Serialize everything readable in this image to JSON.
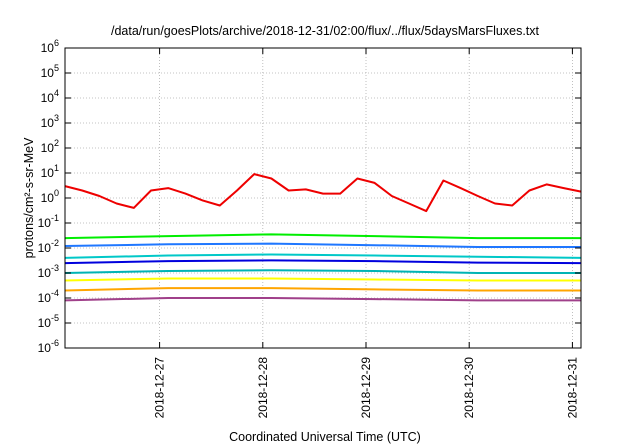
{
  "chart_data": {
    "type": "line",
    "title": "/data/run/goesPlots/archive/2018-12-31/02:00/flux/../flux/5daysMarsFluxes.txt",
    "xlabel": "Coordinated Universal Time (UTC)",
    "ylabel": "protons/cm²-s-sr-MeV",
    "y_scale": "log",
    "ylim": [
      1e-06,
      1000000.0
    ],
    "y_ticks": [
      {
        "exp": "-6",
        "value": 1e-06
      },
      {
        "exp": "-5",
        "value": 1e-05
      },
      {
        "exp": "-4",
        "value": 0.0001
      },
      {
        "exp": "-3",
        "value": 0.001
      },
      {
        "exp": "-2",
        "value": 0.01
      },
      {
        "exp": "-1",
        "value": 0.1
      },
      {
        "exp": "0",
        "value": 1
      },
      {
        "exp": "1",
        "value": 10
      },
      {
        "exp": "2",
        "value": 100
      },
      {
        "exp": "3",
        "value": 1000
      },
      {
        "exp": "4",
        "value": 10000
      },
      {
        "exp": "5",
        "value": 100000
      },
      {
        "exp": "6",
        "value": 1000000
      }
    ],
    "xlim": [
      "2018-12-26T02:00",
      "2018-12-31T02:00"
    ],
    "x_ticks": [
      "2018-12-27",
      "2018-12-28",
      "2018-12-29",
      "2018-12-30",
      "2018-12-31"
    ],
    "grid": true,
    "colors": [
      "#ee0000",
      "#00ee00",
      "#1f77ff",
      "#00c8c8",
      "#0000dd",
      "#00b4b4",
      "#ffff00",
      "#ffa500",
      "#a0408a"
    ],
    "series": [
      {
        "color": "#ee0000",
        "x": [
          "2018-12-26T02:00",
          "2018-12-26T06:00",
          "2018-12-26T10:00",
          "2018-12-26T14:00",
          "2018-12-26T18:00",
          "2018-12-26T22:00",
          "2018-12-27T02:00",
          "2018-12-27T06:00",
          "2018-12-27T10:00",
          "2018-12-27T14:00",
          "2018-12-27T18:00",
          "2018-12-27T22:00",
          "2018-12-28T02:00",
          "2018-12-28T06:00",
          "2018-12-28T10:00",
          "2018-12-28T14:00",
          "2018-12-28T18:00",
          "2018-12-28T22:00",
          "2018-12-29T02:00",
          "2018-12-29T06:00",
          "2018-12-29T10:00",
          "2018-12-29T14:00",
          "2018-12-29T18:00",
          "2018-12-29T22:00",
          "2018-12-30T02:00",
          "2018-12-30T06:00",
          "2018-12-30T10:00",
          "2018-12-30T14:00",
          "2018-12-30T18:00",
          "2018-12-30T22:00",
          "2018-12-31T02:00"
        ],
        "values": [
          3,
          2,
          1.2,
          0.6,
          0.4,
          2,
          2.5,
          1.5,
          0.8,
          0.5,
          2,
          9,
          6,
          2,
          2.2,
          1.5,
          1.5,
          6,
          4,
          1.2,
          0.6,
          0.3,
          5,
          2.5,
          1.2,
          0.6,
          0.5,
          2,
          3.5,
          2.5,
          1.8
        ]
      },
      {
        "color": "#00ee00",
        "x": [
          "2018-12-26T02:00",
          "2018-12-27T02:00",
          "2018-12-28T02:00",
          "2018-12-29T02:00",
          "2018-12-30T02:00",
          "2018-12-31T02:00"
        ],
        "values": [
          0.025,
          0.03,
          0.035,
          0.03,
          0.025,
          0.025
        ]
      },
      {
        "color": "#1f77ff",
        "x": [
          "2018-12-26T02:00",
          "2018-12-27T02:00",
          "2018-12-28T02:00",
          "2018-12-29T02:00",
          "2018-12-30T02:00",
          "2018-12-31T02:00"
        ],
        "values": [
          0.012,
          0.014,
          0.015,
          0.013,
          0.011,
          0.011
        ]
      },
      {
        "color": "#00c8c8",
        "x": [
          "2018-12-26T02:00",
          "2018-12-27T02:00",
          "2018-12-28T02:00",
          "2018-12-29T02:00",
          "2018-12-30T02:00",
          "2018-12-31T02:00"
        ],
        "values": [
          0.004,
          0.005,
          0.0055,
          0.005,
          0.0045,
          0.004
        ]
      },
      {
        "color": "#0000dd",
        "x": [
          "2018-12-26T02:00",
          "2018-12-27T02:00",
          "2018-12-28T02:00",
          "2018-12-29T02:00",
          "2018-12-30T02:00",
          "2018-12-31T02:00"
        ],
        "values": [
          0.0025,
          0.003,
          0.0032,
          0.003,
          0.0026,
          0.0025
        ]
      },
      {
        "color": "#00b4b4",
        "x": [
          "2018-12-26T02:00",
          "2018-12-27T02:00",
          "2018-12-28T02:00",
          "2018-12-29T02:00",
          "2018-12-30T02:00",
          "2018-12-31T02:00"
        ],
        "values": [
          0.001,
          0.0012,
          0.0013,
          0.0012,
          0.001,
          0.001
        ]
      },
      {
        "color": "#ffff00",
        "x": [
          "2018-12-26T02:00",
          "2018-12-27T02:00",
          "2018-12-28T02:00",
          "2018-12-29T02:00",
          "2018-12-30T02:00",
          "2018-12-31T02:00"
        ],
        "values": [
          0.0005,
          0.0006,
          0.0006,
          0.00055,
          0.0005,
          0.0005
        ]
      },
      {
        "color": "#ffa500",
        "x": [
          "2018-12-26T02:00",
          "2018-12-27T02:00",
          "2018-12-28T02:00",
          "2018-12-29T02:00",
          "2018-12-30T02:00",
          "2018-12-31T02:00"
        ],
        "values": [
          0.0002,
          0.00025,
          0.00025,
          0.00022,
          0.0002,
          0.0002
        ]
      },
      {
        "color": "#a0408a",
        "x": [
          "2018-12-26T02:00",
          "2018-12-27T02:00",
          "2018-12-28T02:00",
          "2018-12-29T02:00",
          "2018-12-30T02:00",
          "2018-12-31T02:00"
        ],
        "values": [
          8e-05,
          0.0001,
          0.0001,
          9e-05,
          8e-05,
          8e-05
        ]
      }
    ]
  }
}
